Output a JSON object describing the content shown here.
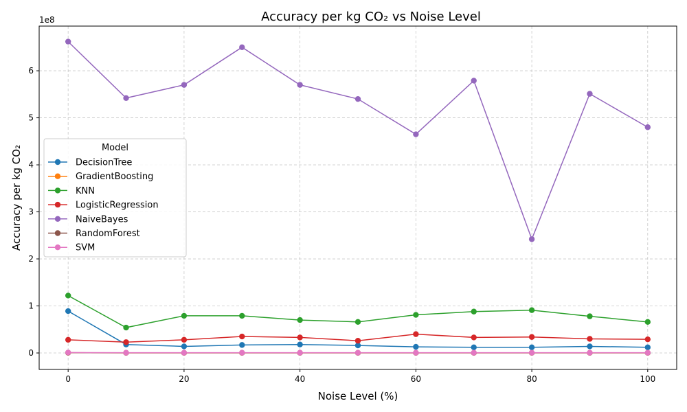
{
  "chart_data": {
    "type": "line",
    "title": "Accuracy per kg CO₂ vs Noise Level",
    "xlabel": "Noise Level (%)",
    "ylabel": "Accuracy per kg CO₂",
    "y_offset_label": "1e8",
    "x": [
      0,
      10,
      20,
      30,
      40,
      50,
      60,
      70,
      80,
      90,
      100
    ],
    "xlim": [
      -5,
      105
    ],
    "ylim": [
      -0.35,
      6.95
    ],
    "y_scale": 100000000,
    "xticks": [
      0,
      20,
      40,
      60,
      80,
      100
    ],
    "yticks": [
      0,
      1,
      2,
      3,
      4,
      5,
      6
    ],
    "grid": true,
    "legend_title": "Model",
    "legend_position": "center-left",
    "series": [
      {
        "name": "DecisionTree",
        "color": "#1f77b4",
        "values": [
          0.89,
          0.18,
          0.14,
          0.17,
          0.18,
          0.16,
          0.13,
          0.12,
          0.12,
          0.14,
          0.12
        ]
      },
      {
        "name": "GradientBoosting",
        "color": "#ff7f0e",
        "values": [
          0.005,
          0.003,
          0.003,
          0.003,
          0.003,
          0.003,
          0.003,
          0.003,
          0.003,
          0.003,
          0.003
        ]
      },
      {
        "name": "KNN",
        "color": "#2ca02c",
        "values": [
          1.22,
          0.54,
          0.79,
          0.79,
          0.7,
          0.66,
          0.81,
          0.88,
          0.91,
          0.78,
          0.66
        ]
      },
      {
        "name": "LogisticRegression",
        "color": "#d62728",
        "values": [
          0.28,
          0.23,
          0.28,
          0.35,
          0.33,
          0.26,
          0.4,
          0.33,
          0.34,
          0.3,
          0.29
        ]
      },
      {
        "name": "NaiveBayes",
        "color": "#9467bd",
        "values": [
          6.62,
          5.42,
          5.7,
          6.5,
          5.7,
          5.4,
          4.65,
          5.79,
          2.42,
          5.51,
          4.8
        ]
      },
      {
        "name": "RandomForest",
        "color": "#8c564b",
        "values": [
          0.005,
          0.003,
          0.003,
          0.003,
          0.003,
          0.003,
          0.003,
          0.003,
          0.003,
          0.003,
          0.003
        ]
      },
      {
        "name": "SVM",
        "color": "#e377c2",
        "values": [
          0.01,
          0.005,
          0.005,
          0.005,
          0.005,
          0.005,
          0.005,
          0.005,
          0.005,
          0.005,
          0.005
        ]
      }
    ]
  }
}
